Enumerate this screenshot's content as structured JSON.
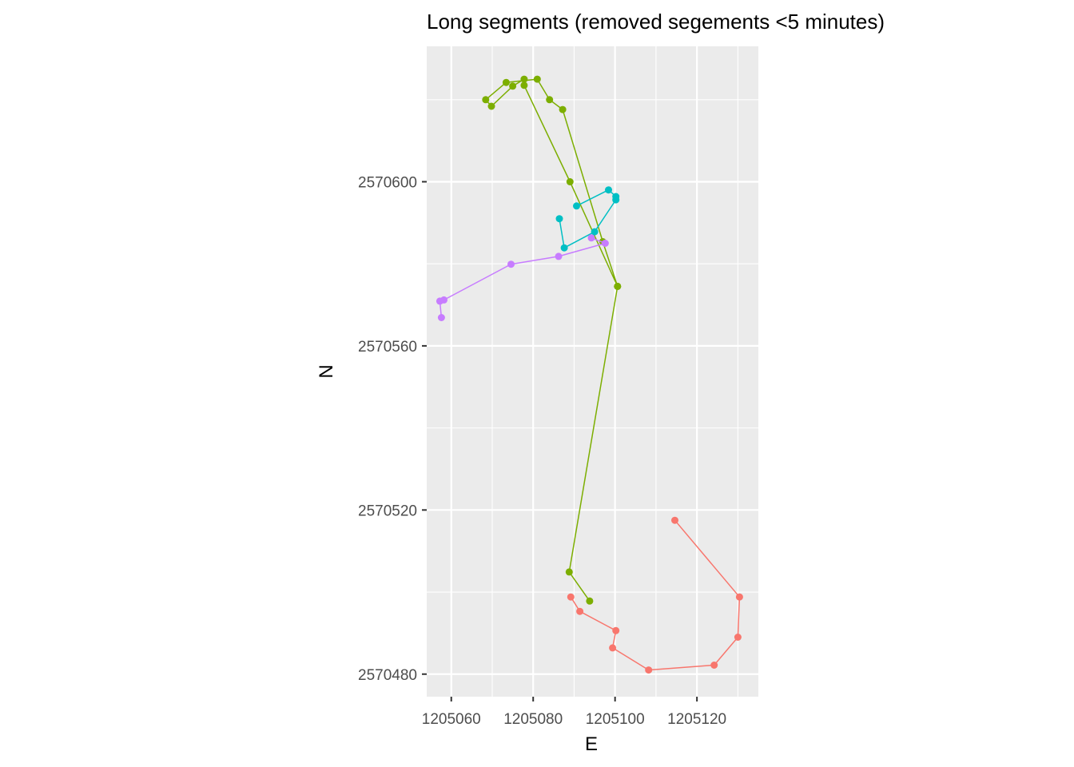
{
  "chart_data": {
    "type": "line",
    "title": "Long segments (removed segements <5 minutes)",
    "xlabel": "E",
    "ylabel": "N",
    "xlim": [
      1205054,
      1205135
    ],
    "ylim": [
      2570474.5,
      2570633
    ],
    "x_ticks": [
      1205060,
      1205080,
      1205100,
      1205120
    ],
    "y_ticks": [
      2570480,
      2570520,
      2570560,
      2570600
    ],
    "x_tick_labels": [
      "1205060",
      "1205080",
      "1205100",
      "1205120"
    ],
    "y_tick_labels": [
      "2570480",
      "2570520",
      "2570560",
      "2570600"
    ],
    "grid": true,
    "legend": "none",
    "panel_background": "#ebebeb",
    "series": [
      {
        "color": "#f8766d",
        "points": [
          [
            1205114.6,
            2570517.5
          ],
          [
            1205130.4,
            2570498.8
          ],
          [
            1205130.0,
            2570489.0
          ],
          [
            1205124.2,
            2570482.2
          ],
          [
            1205108.2,
            2570481.0
          ],
          [
            1205099.4,
            2570486.4
          ],
          [
            1205100.2,
            2570490.6
          ],
          [
            1205091.4,
            2570495.3
          ],
          [
            1205089.2,
            2570498.8
          ]
        ]
      },
      {
        "color": "#7cae00",
        "points": [
          [
            1205093.8,
            2570497.8
          ],
          [
            1205088.8,
            2570504.9
          ],
          [
            1205100.6,
            2570574.5
          ],
          [
            1205097.0,
            2570585.4
          ],
          [
            1205087.2,
            2570617.6
          ],
          [
            1205084.0,
            2570620.0
          ],
          [
            1205081.0,
            2570625.0
          ],
          [
            1205073.4,
            2570624.2
          ],
          [
            1205068.4,
            2570620.0
          ],
          [
            1205069.8,
            2570618.4
          ],
          [
            1205075.0,
            2570623.3
          ],
          [
            1205077.8,
            2570625.0
          ],
          [
            1205077.8,
            2570623.5
          ],
          [
            1205089.0,
            2570600.0
          ],
          [
            1205100.6,
            2570574.5
          ]
        ]
      },
      {
        "color": "#00bfc4",
        "points": [
          [
            1205086.4,
            2570591.0
          ],
          [
            1205087.6,
            2570583.9
          ],
          [
            1205095.0,
            2570587.8
          ],
          [
            1205100.2,
            2570595.6
          ],
          [
            1205100.2,
            2570596.4
          ],
          [
            1205098.4,
            2570598.0
          ],
          [
            1205090.6,
            2570594.1
          ]
        ]
      },
      {
        "color": "#c77cff",
        "points": [
          [
            1205057.6,
            2570566.9
          ],
          [
            1205057.2,
            2570570.9
          ],
          [
            1205058.2,
            2570571.2
          ],
          [
            1205074.6,
            2570579.9
          ],
          [
            1205086.2,
            2570581.8
          ],
          [
            1205097.6,
            2570585.0
          ],
          [
            1205094.2,
            2570586.3
          ]
        ]
      }
    ]
  }
}
